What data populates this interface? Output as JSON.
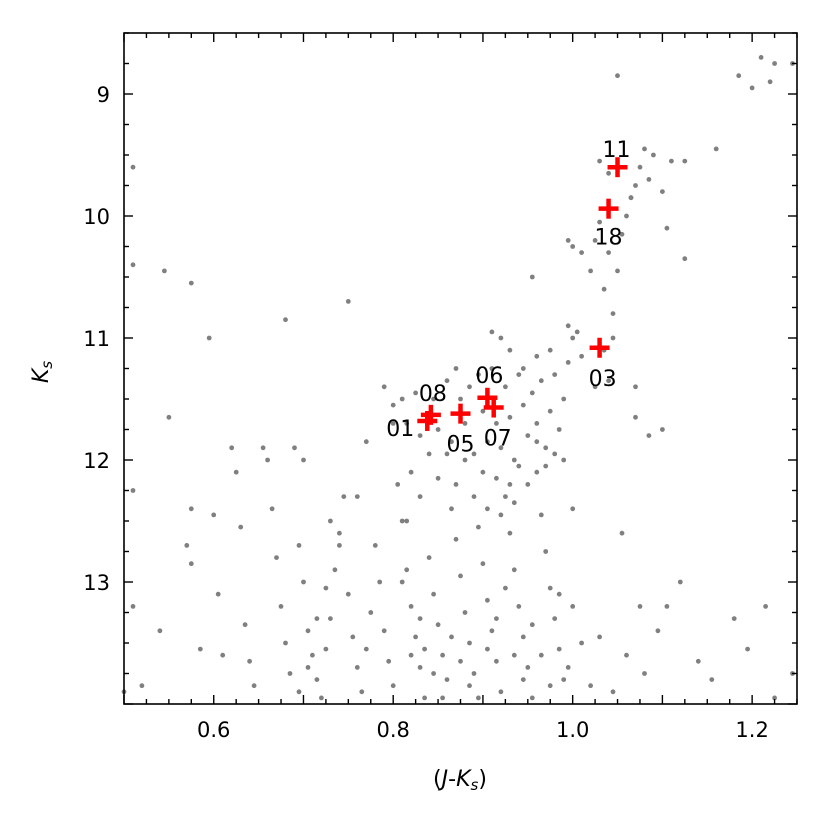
{
  "chart_data": {
    "type": "scatter",
    "title": "",
    "xlabel": "(J-K_s)",
    "ylabel": "K_s",
    "xlim": [
      0.5,
      1.25
    ],
    "ylim": [
      14.0,
      8.5
    ],
    "y_inverted": true,
    "grid": false,
    "legend": "none",
    "xticks": [
      {
        "value": 0.6,
        "label": "0.6"
      },
      {
        "value": 0.8,
        "label": "0.8"
      },
      {
        "value": 1.0,
        "label": "1.0"
      },
      {
        "value": 1.2,
        "label": "1.2"
      }
    ],
    "yticks": [
      {
        "value": 9,
        "label": "9"
      },
      {
        "value": 10,
        "label": "10"
      },
      {
        "value": 11,
        "label": "11"
      },
      {
        "value": 12,
        "label": "12"
      },
      {
        "value": 13,
        "label": "13"
      }
    ],
    "colors": {
      "background_points": "#808080",
      "highlighted": "#ff0000"
    },
    "background_points": [
      [
        0.51,
        9.6
      ],
      [
        0.51,
        10.4
      ],
      [
        0.51,
        12.25
      ],
      [
        0.51,
        13.2
      ],
      [
        0.5,
        13.9
      ],
      [
        0.52,
        13.85
      ],
      [
        0.545,
        10.45
      ],
      [
        0.55,
        11.65
      ],
      [
        0.54,
        13.4
      ],
      [
        0.575,
        10.55
      ],
      [
        0.57,
        12.7
      ],
      [
        0.575,
        12.85
      ],
      [
        0.575,
        12.4
      ],
      [
        0.585,
        13.55
      ],
      [
        0.595,
        11.0
      ],
      [
        0.6,
        12.45
      ],
      [
        0.605,
        13.1
      ],
      [
        0.61,
        13.6
      ],
      [
        0.62,
        11.9
      ],
      [
        0.625,
        12.1
      ],
      [
        0.63,
        12.55
      ],
      [
        0.635,
        13.35
      ],
      [
        0.64,
        13.65
      ],
      [
        0.645,
        13.85
      ],
      [
        0.655,
        11.9
      ],
      [
        0.66,
        12.0
      ],
      [
        0.665,
        12.4
      ],
      [
        0.67,
        12.8
      ],
      [
        0.675,
        13.2
      ],
      [
        0.68,
        13.5
      ],
      [
        0.685,
        13.75
      ],
      [
        0.69,
        11.9
      ],
      [
        0.7,
        12.0
      ],
      [
        0.695,
        12.7
      ],
      [
        0.7,
        13.0
      ],
      [
        0.705,
        13.4
      ],
      [
        0.71,
        13.6
      ],
      [
        0.715,
        13.8
      ],
      [
        0.72,
        13.95
      ],
      [
        0.725,
        13.55
      ],
      [
        0.73,
        13.3
      ],
      [
        0.735,
        12.9
      ],
      [
        0.74,
        12.6
      ],
      [
        0.745,
        12.3
      ],
      [
        0.75,
        10.7
      ],
      [
        0.75,
        13.1
      ],
      [
        0.755,
        13.45
      ],
      [
        0.76,
        13.7
      ],
      [
        0.765,
        13.9
      ],
      [
        0.77,
        13.55
      ],
      [
        0.775,
        13.25
      ],
      [
        0.78,
        12.7
      ],
      [
        0.785,
        13.0
      ],
      [
        0.79,
        13.4
      ],
      [
        0.795,
        13.65
      ],
      [
        0.8,
        13.85
      ],
      [
        0.805,
        12.2
      ],
      [
        0.81,
        12.5
      ],
      [
        0.815,
        12.9
      ],
      [
        0.82,
        13.2
      ],
      [
        0.825,
        13.45
      ],
      [
        0.83,
        13.7
      ],
      [
        0.835,
        13.95
      ],
      [
        0.84,
        12.8
      ],
      [
        0.845,
        13.1
      ],
      [
        0.85,
        13.35
      ],
      [
        0.855,
        13.6
      ],
      [
        0.86,
        13.8
      ],
      [
        0.865,
        12.4
      ],
      [
        0.87,
        12.65
      ],
      [
        0.875,
        12.95
      ],
      [
        0.88,
        13.25
      ],
      [
        0.885,
        13.5
      ],
      [
        0.89,
        13.75
      ],
      [
        0.895,
        12.55
      ],
      [
        0.9,
        12.85
      ],
      [
        0.905,
        13.15
      ],
      [
        0.91,
        13.4
      ],
      [
        0.915,
        13.65
      ],
      [
        0.92,
        13.9
      ],
      [
        0.925,
        12.3
      ],
      [
        0.93,
        12.6
      ],
      [
        0.935,
        12.9
      ],
      [
        0.94,
        13.2
      ],
      [
        0.945,
        13.45
      ],
      [
        0.95,
        13.7
      ],
      [
        0.955,
        13.95
      ],
      [
        0.96,
        12.1
      ],
      [
        0.965,
        12.45
      ],
      [
        0.97,
        12.75
      ],
      [
        0.975,
        13.05
      ],
      [
        0.98,
        13.3
      ],
      [
        0.985,
        13.55
      ],
      [
        0.99,
        13.8
      ],
      [
        0.79,
        11.4
      ],
      [
        0.8,
        11.55
      ],
      [
        0.81,
        11.5
      ],
      [
        0.815,
        11.7
      ],
      [
        0.825,
        11.45
      ],
      [
        0.83,
        11.8
      ],
      [
        0.845,
        11.5
      ],
      [
        0.85,
        11.75
      ],
      [
        0.86,
        11.35
      ],
      [
        0.865,
        11.85
      ],
      [
        0.87,
        11.25
      ],
      [
        0.875,
        11.5
      ],
      [
        0.88,
        11.7
      ],
      [
        0.885,
        11.4
      ],
      [
        0.89,
        11.95
      ],
      [
        0.895,
        11.3
      ],
      [
        0.9,
        11.6
      ],
      [
        0.905,
        11.85
      ],
      [
        0.91,
        11.25
      ],
      [
        0.915,
        11.7
      ],
      [
        0.92,
        11.9
      ],
      [
        0.925,
        11.4
      ],
      [
        0.93,
        11.65
      ],
      [
        0.935,
        12.0
      ],
      [
        0.94,
        11.3
      ],
      [
        0.945,
        11.55
      ],
      [
        0.95,
        11.8
      ],
      [
        0.955,
        11.45
      ],
      [
        0.96,
        11.7
      ],
      [
        0.965,
        11.35
      ],
      [
        0.97,
        11.9
      ],
      [
        0.975,
        11.6
      ],
      [
        0.98,
        11.3
      ],
      [
        0.985,
        11.75
      ],
      [
        0.99,
        11.5
      ],
      [
        0.995,
        11.2
      ],
      [
        1.0,
        11.0
      ],
      [
        1.005,
        10.95
      ],
      [
        0.995,
        10.9
      ],
      [
        1.01,
        11.15
      ],
      [
        0.975,
        11.1
      ],
      [
        0.96,
        11.15
      ],
      [
        0.945,
        11.25
      ],
      [
        0.93,
        11.1
      ],
      [
        0.92,
        11.0
      ],
      [
        0.91,
        10.95
      ],
      [
        0.955,
        10.5
      ],
      [
        0.995,
        10.2
      ],
      [
        1.0,
        10.25
      ],
      [
        1.01,
        10.3
      ],
      [
        1.02,
        10.45
      ],
      [
        1.025,
        10.2
      ],
      [
        1.03,
        10.05
      ],
      [
        1.035,
        10.6
      ],
      [
        1.04,
        10.3
      ],
      [
        1.045,
        10.8
      ],
      [
        1.05,
        10.45
      ],
      [
        1.055,
        10.15
      ],
      [
        1.06,
        10.0
      ],
      [
        1.065,
        9.85
      ],
      [
        1.07,
        9.75
      ],
      [
        1.075,
        9.6
      ],
      [
        1.08,
        9.45
      ],
      [
        1.085,
        9.7
      ],
      [
        1.09,
        9.5
      ],
      [
        1.1,
        9.8
      ],
      [
        1.105,
        10.1
      ],
      [
        1.11,
        9.55
      ],
      [
        1.125,
        10.35
      ],
      [
        1.125,
        9.55
      ],
      [
        1.16,
        9.45
      ],
      [
        1.185,
        8.85
      ],
      [
        1.2,
        8.95
      ],
      [
        1.21,
        8.7
      ],
      [
        1.22,
        8.9
      ],
      [
        1.225,
        8.75
      ],
      [
        1.05,
        8.85
      ],
      [
        1.065,
        9.85
      ],
      [
        1.04,
        9.65
      ],
      [
        1.03,
        9.55
      ],
      [
        1.025,
        11.4
      ],
      [
        1.035,
        11.1
      ],
      [
        1.04,
        11.35
      ],
      [
        1.045,
        11.0
      ],
      [
        1.07,
        11.4
      ],
      [
        1.07,
        11.65
      ],
      [
        1.085,
        11.8
      ],
      [
        1.1,
        11.75
      ],
      [
        1.055,
        12.6
      ],
      [
        1.075,
        13.2
      ],
      [
        1.08,
        13.75
      ],
      [
        1.095,
        13.4
      ],
      [
        1.105,
        13.2
      ],
      [
        1.12,
        13.0
      ],
      [
        1.14,
        13.65
      ],
      [
        1.155,
        13.8
      ],
      [
        1.18,
        13.3
      ],
      [
        1.195,
        13.55
      ],
      [
        1.215,
        13.2
      ],
      [
        1.225,
        13.95
      ],
      [
        1.245,
        13.75
      ],
      [
        1.245,
        8.75
      ],
      [
        1.0,
        13.2
      ],
      [
        1.01,
        13.5
      ],
      [
        1.02,
        13.85
      ],
      [
        1.03,
        13.45
      ],
      [
        1.045,
        13.9
      ],
      [
        1.06,
        13.6
      ],
      [
        1.0,
        12.4
      ],
      [
        0.99,
        12.0
      ],
      [
        0.98,
        11.95
      ],
      [
        0.97,
        12.05
      ],
      [
        0.96,
        11.85
      ],
      [
        0.95,
        12.2
      ],
      [
        0.94,
        12.05
      ],
      [
        0.935,
        12.35
      ],
      [
        0.93,
        12.2
      ],
      [
        0.92,
        12.45
      ],
      [
        0.915,
        12.15
      ],
      [
        0.905,
        12.4
      ],
      [
        0.9,
        12.1
      ],
      [
        0.89,
        12.3
      ],
      [
        0.88,
        12.0
      ],
      [
        0.87,
        12.2
      ],
      [
        0.86,
        11.95
      ],
      [
        0.85,
        12.15
      ],
      [
        0.84,
        11.95
      ],
      [
        0.83,
        12.3
      ],
      [
        0.82,
        12.1
      ],
      [
        0.815,
        12.5
      ],
      [
        0.68,
        10.85
      ],
      [
        0.8,
        11.7
      ],
      [
        0.77,
        11.85
      ],
      [
        0.76,
        12.3
      ],
      [
        0.74,
        12.7
      ],
      [
        0.73,
        12.5
      ],
      [
        0.725,
        13.05
      ],
      [
        0.715,
        13.3
      ],
      [
        0.705,
        13.7
      ],
      [
        0.695,
        13.9
      ],
      [
        0.81,
        13.0
      ],
      [
        0.82,
        13.6
      ],
      [
        0.83,
        13.3
      ],
      [
        0.835,
        13.55
      ],
      [
        0.845,
        13.75
      ],
      [
        0.855,
        13.95
      ],
      [
        0.865,
        13.45
      ],
      [
        0.875,
        13.65
      ],
      [
        0.885,
        13.85
      ],
      [
        0.895,
        13.95
      ],
      [
        0.905,
        13.55
      ],
      [
        0.915,
        13.3
      ],
      [
        0.925,
        13.05
      ],
      [
        0.935,
        13.6
      ],
      [
        0.945,
        13.8
      ],
      [
        0.955,
        13.35
      ],
      [
        0.965,
        13.6
      ],
      [
        0.975,
        13.85
      ],
      [
        0.985,
        13.1
      ],
      [
        0.995,
        13.7
      ]
    ],
    "highlighted_stars": [
      {
        "id": "01",
        "x": 0.838,
        "y": 11.68
      },
      {
        "id": "08",
        "x": 0.842,
        "y": 11.63
      },
      {
        "id": "05",
        "x": 0.875,
        "y": 11.62
      },
      {
        "id": "06",
        "x": 0.905,
        "y": 11.49
      },
      {
        "id": "07",
        "x": 0.912,
        "y": 11.57
      },
      {
        "id": "03",
        "x": 1.03,
        "y": 11.08
      },
      {
        "id": "18",
        "x": 1.04,
        "y": 9.94
      },
      {
        "id": "11",
        "x": 1.05,
        "y": 9.6
      }
    ],
    "star_label_offsets": {
      "01": [
        -27,
        7
      ],
      "08": [
        2,
        -22
      ],
      "05": [
        0,
        30
      ],
      "06": [
        2,
        -23
      ],
      "07": [
        4,
        30
      ],
      "03": [
        3,
        30
      ],
      "18": [
        0,
        28
      ],
      "11": [
        -1,
        -18
      ]
    }
  }
}
